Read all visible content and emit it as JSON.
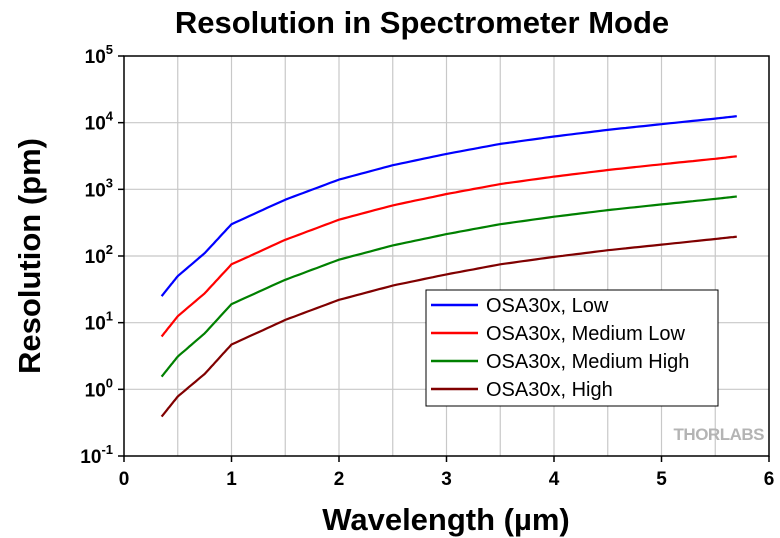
{
  "chart_data": {
    "type": "line",
    "title": "Resolution in Spectrometer Mode",
    "xlabel": "Wavelength (µm)",
    "ylabel": "Resolution (pm)",
    "xlim": [
      0,
      6
    ],
    "ylim": [
      0.1,
      100000
    ],
    "yscale": "log",
    "x_ticks": [
      "0",
      "1",
      "2",
      "3",
      "4",
      "5",
      "6"
    ],
    "y_ticks": [
      {
        "base": "10",
        "exp": "-1"
      },
      {
        "base": "10",
        "exp": "0"
      },
      {
        "base": "10",
        "exp": "1"
      },
      {
        "base": "10",
        "exp": "2"
      },
      {
        "base": "10",
        "exp": "3"
      },
      {
        "base": "10",
        "exp": "4"
      },
      {
        "base": "10",
        "exp": "5"
      }
    ],
    "grid": true,
    "legend_position": "lower-right",
    "x": [
      0.35,
      0.5,
      0.75,
      1.0,
      1.5,
      2.0,
      2.5,
      3.0,
      3.5,
      4.0,
      4.5,
      5.0,
      5.5,
      5.7
    ],
    "series": [
      {
        "name": "OSA30x, Low",
        "color": "#0000ff",
        "values": [
          25,
          50,
          110,
          300,
          700,
          1400,
          2300,
          3400,
          4800,
          6200,
          7800,
          9500,
          11500,
          12500
        ]
      },
      {
        "name": "OSA30x, Medium Low",
        "color": "#ff0000",
        "values": [
          6.2,
          12.5,
          27.5,
          75,
          175,
          350,
          575,
          850,
          1200,
          1550,
          1950,
          2375,
          2875,
          3125
        ]
      },
      {
        "name": "OSA30x, Medium High",
        "color": "#008000",
        "values": [
          1.55,
          3.1,
          6.9,
          19,
          44,
          88,
          144,
          213,
          300,
          388,
          488,
          594,
          719,
          781
        ]
      },
      {
        "name": "OSA30x, High",
        "color": "#800000",
        "values": [
          0.39,
          0.78,
          1.7,
          4.7,
          11,
          22,
          36,
          53,
          75,
          97,
          122,
          148,
          180,
          195
        ]
      }
    ]
  },
  "watermark": "THORLABS"
}
